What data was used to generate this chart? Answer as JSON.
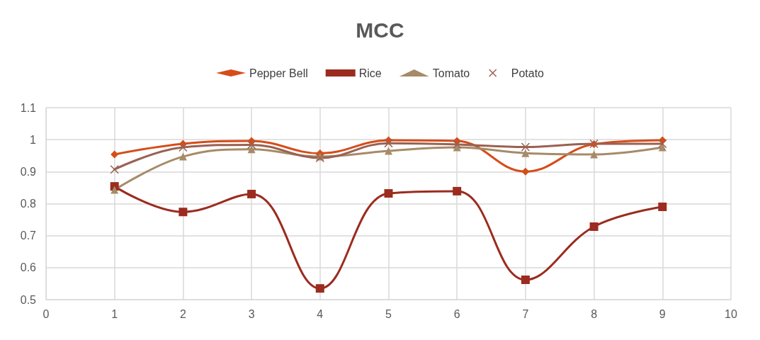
{
  "chart_data": {
    "type": "line",
    "title": "MCC",
    "x": [
      1,
      2,
      3,
      4,
      5,
      6,
      7,
      8,
      9
    ],
    "series": [
      {
        "name": "Pepper Bell",
        "color": "#d54d1a",
        "marker": "diamond",
        "values": [
          0.954,
          0.987,
          0.996,
          0.957,
          0.998,
          0.996,
          0.9,
          0.986,
          0.998
        ]
      },
      {
        "name": "Rice",
        "color": "#9b2c1f",
        "marker": "square",
        "values": [
          0.854,
          0.774,
          0.83,
          0.535,
          0.832,
          0.839,
          0.562,
          0.728,
          0.79
        ]
      },
      {
        "name": "Tomato",
        "color": "#a68b68",
        "marker": "triangle",
        "values": [
          0.843,
          0.947,
          0.97,
          0.947,
          0.965,
          0.976,
          0.958,
          0.954,
          0.976
        ]
      },
      {
        "name": "Potato",
        "color": "#9a6152",
        "marker": "cross",
        "values": [
          0.907,
          0.976,
          0.984,
          0.943,
          0.989,
          0.985,
          0.977,
          0.987,
          0.987
        ]
      }
    ],
    "xlim": [
      0,
      10
    ],
    "xticks": [
      0,
      1,
      2,
      3,
      4,
      5,
      6,
      7,
      8,
      9,
      10
    ],
    "ylim": [
      0.5,
      1.1
    ],
    "yticks": [
      0.5,
      0.6,
      0.7,
      0.8,
      0.9,
      1,
      1.1
    ],
    "grid": true,
    "legend": "top",
    "line_style": "solid"
  }
}
